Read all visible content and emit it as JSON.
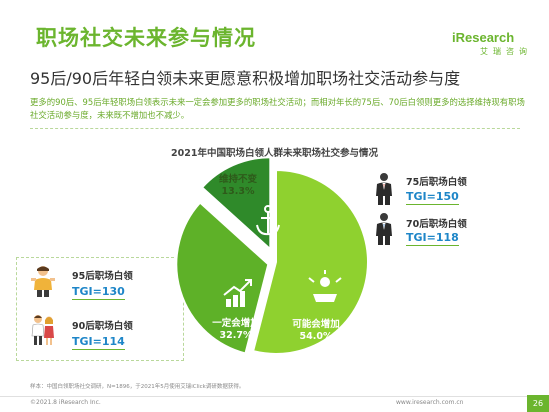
{
  "slide": {
    "title": "职场社交未来参与情况",
    "brand_name": "iResearch",
    "brand_sub": "艾瑞咨询",
    "headline": "95后/90后年轻白领未来更愿意积极增加职场社交活动参与度",
    "description": "更多的90后、95后年轻职场白领表示未来一定会参加更多的职场社交活动；而相对年长的75后、70后白领则更多的选择维持现有职场社交活动参与度，未来既不增加也不减少。",
    "footnote": "样本：中国白领职场社交调研，N=1896，于2021年5月使用艾瑞iClick调研数据获得。",
    "copyright": "©2021.8 iResearch Inc.",
    "site": "www.iresearch.com.cn",
    "page": "26"
  },
  "colors": {
    "accent": "#6bb52e",
    "maybe": "#8fd12f",
    "sure": "#5eb128",
    "keep": "#2f8a2a",
    "tgi": "#1e86c8"
  },
  "chart_data": {
    "type": "pie",
    "title": "2021年中国职场白领人群未来职场社交参与情况",
    "slices": [
      {
        "label": "可能会增加",
        "value": 54.0,
        "display": "54.0%",
        "icon": "handshake-icon"
      },
      {
        "label": "一定会增加",
        "value": 32.7,
        "display": "32.7%",
        "icon": "rising-chart-icon"
      },
      {
        "label": "维持不变",
        "value": 13.3,
        "display": "13.3%",
        "icon": "anchor-icon"
      }
    ]
  },
  "callouts": {
    "right": [
      {
        "label": "75后职场白领",
        "tgi": "TGI=150",
        "icon": "businessman-icon"
      },
      {
        "label": "70后职场白领",
        "tgi": "TGI=118",
        "icon": "businessman-icon"
      }
    ],
    "left": [
      {
        "label": "95后职场白领",
        "tgi": "TGI=130",
        "icon": "young-worker-icon"
      },
      {
        "label": "90后职场白领",
        "tgi": "TGI=114",
        "icon": "young-worker-icon"
      }
    ]
  }
}
